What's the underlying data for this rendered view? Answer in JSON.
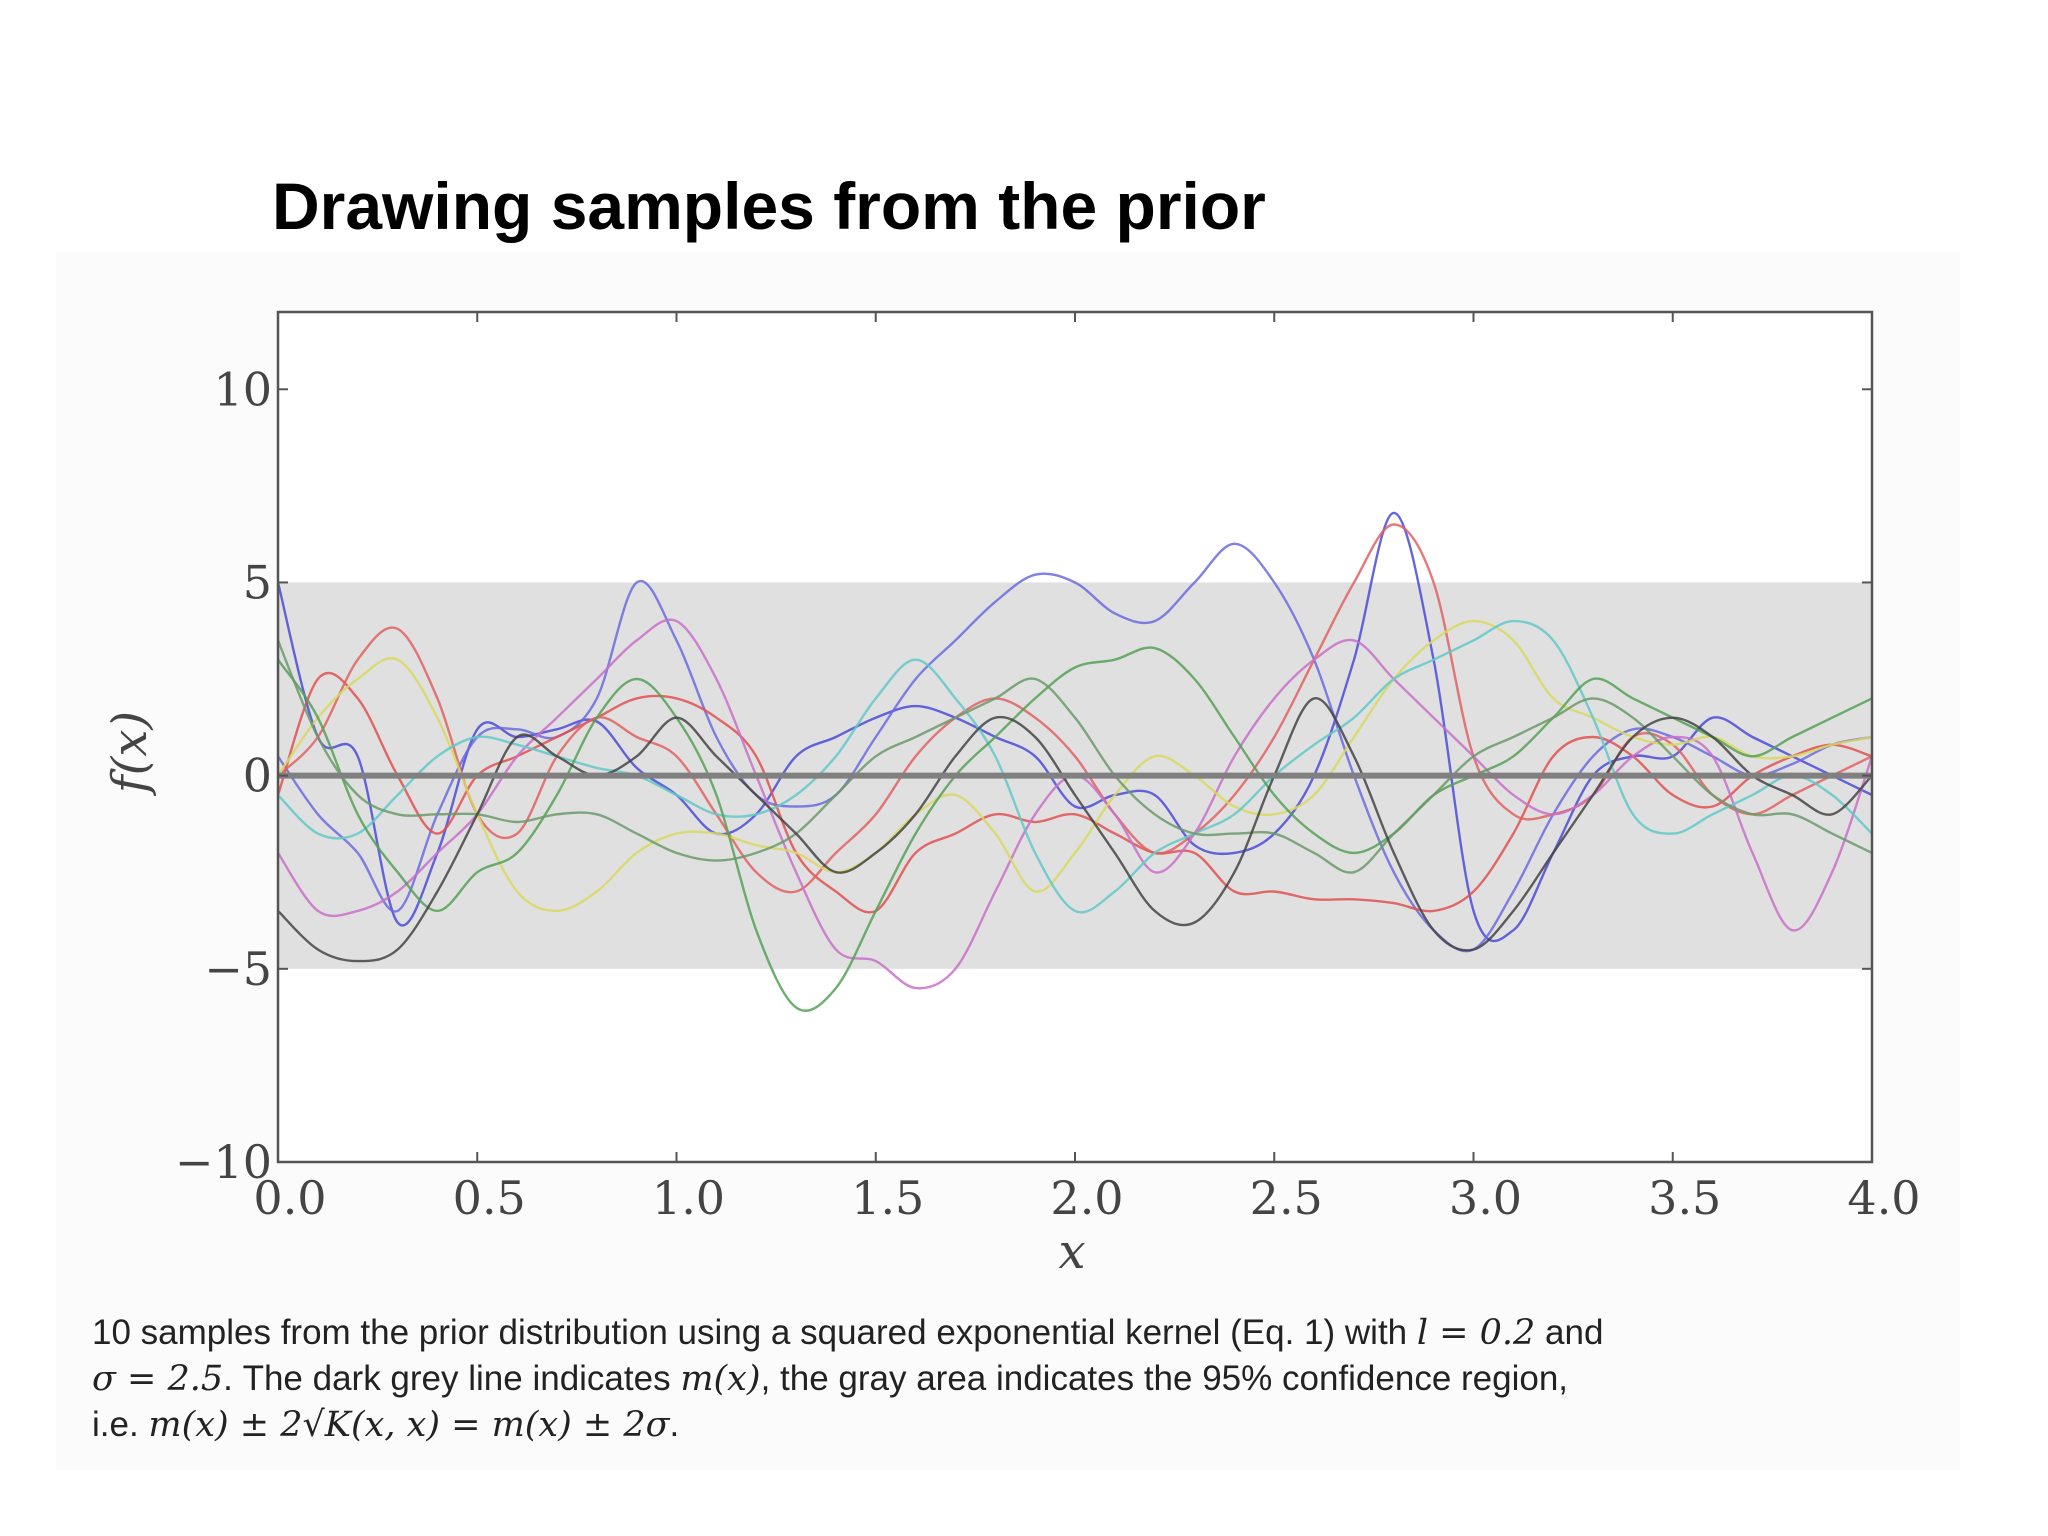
{
  "slide": {
    "title": "Drawing samples from the prior"
  },
  "caption": {
    "line1_text": "10 samples from the prior distribution using a squared exponential kernel (Eq. 1) with ",
    "line1_math": "l = 0.2",
    "line1_tail": " and",
    "line2_math_a": "σ = 2.5",
    "line2_text_a": ". The dark grey line indicates ",
    "line2_math_b": "m(x)",
    "line2_text_b": ", the gray area indicates the 95% confidence region,",
    "line3_text": "i.e. ",
    "line3_math": "m(x) ± 2√K(x, x) = m(x) ± 2σ",
    "line3_tail": "."
  },
  "chart_data": {
    "type": "line",
    "title": "",
    "xlabel": "x",
    "ylabel": "f(x)",
    "xlim": [
      0,
      4
    ],
    "ylim": [
      -10,
      12
    ],
    "xticks": [
      0,
      0.5,
      1,
      1.5,
      2,
      2.5,
      3,
      3.5,
      4
    ],
    "xtick_labels": [
      "0.0",
      "0.5",
      "1.0",
      "1.5",
      "2.0",
      "2.5",
      "3.0",
      "3.5",
      "4.0"
    ],
    "yticks": [
      10,
      5,
      0,
      -5,
      -10
    ],
    "ytick_labels": [
      "10",
      "5",
      "0",
      "−5",
      "−10"
    ],
    "grid": false,
    "mean_line": {
      "value": 0,
      "color": "#808080"
    },
    "confidence_band": {
      "lower": -5,
      "upper": 5,
      "color": "#e0e0e0"
    },
    "x": [
      0,
      0.1,
      0.2,
      0.3,
      0.4,
      0.5,
      0.6,
      0.7,
      0.8,
      0.9,
      1.0,
      1.1,
      1.2,
      1.3,
      1.4,
      1.5,
      1.6,
      1.7,
      1.8,
      1.9,
      2.0,
      2.1,
      2.2,
      2.3,
      2.4,
      2.5,
      2.6,
      2.7,
      2.8,
      2.9,
      3.0,
      3.1,
      3.2,
      3.3,
      3.4,
      3.5,
      3.6,
      3.7,
      3.8,
      3.9,
      4.0
    ],
    "series": [
      {
        "color": "#4a4ad8",
        "values": [
          5.0,
          1.0,
          0.5,
          -3.8,
          -2.0,
          1.2,
          1.0,
          1.2,
          1.4,
          0.2,
          -0.5,
          -1.5,
          -1.0,
          0.5,
          1.0,
          1.5,
          1.8,
          1.5,
          1.0,
          0.5,
          -0.8,
          -0.5,
          -0.5,
          -1.8,
          -2.0,
          -1.5,
          0.0,
          3.0,
          6.8,
          3.0,
          -3.5,
          -4.0,
          -2.0,
          0.0,
          0.5,
          0.5,
          1.5,
          1.0,
          0.5,
          0.0,
          -0.5
        ]
      },
      {
        "color": "#6a6ae0",
        "values": [
          0.5,
          -1.0,
          -2.0,
          -3.5,
          -1.0,
          1.0,
          1.2,
          1.0,
          2.0,
          5.0,
          3.5,
          1.0,
          -0.5,
          -0.8,
          -0.5,
          1.0,
          2.5,
          3.5,
          4.5,
          5.2,
          5.0,
          4.2,
          4.0,
          5.0,
          6.0,
          5.0,
          3.0,
          0.0,
          -2.5,
          -4.0,
          -4.5,
          -3.0,
          -1.0,
          0.5,
          1.2,
          1.0,
          0.5,
          0.0,
          0.3,
          0.8,
          1.0
        ]
      },
      {
        "color": "#e05050",
        "values": [
          -0.5,
          2.5,
          2.0,
          0.0,
          -1.5,
          0.0,
          0.5,
          1.0,
          1.5,
          2.0,
          2.0,
          1.5,
          0.5,
          -2.0,
          -3.0,
          -3.5,
          -2.0,
          -1.5,
          -1.0,
          -1.2,
          -1.0,
          -1.5,
          -2.0,
          -2.0,
          -3.0,
          -3.0,
          -3.2,
          -3.2,
          -3.3,
          -3.5,
          -3.0,
          -1.5,
          0.5,
          1.0,
          0.5,
          -0.5,
          -0.8,
          0.0,
          0.5,
          0.8,
          0.5
        ]
      },
      {
        "color": "#e06060",
        "values": [
          0.0,
          1.0,
          3.0,
          3.8,
          2.0,
          -1.0,
          -1.5,
          0.5,
          1.5,
          1.0,
          0.5,
          -1.0,
          -2.5,
          -3.0,
          -2.0,
          -1.0,
          0.5,
          1.5,
          2.0,
          1.5,
          0.5,
          -1.0,
          -2.0,
          -1.5,
          -0.5,
          1.0,
          3.0,
          5.0,
          6.5,
          5.0,
          0.5,
          -1.0,
          -1.0,
          -0.5,
          1.0,
          0.8,
          -0.5,
          -1.0,
          -0.5,
          0.0,
          0.5
        ]
      },
      {
        "color": "#c870c8",
        "values": [
          -2.0,
          -3.5,
          -3.5,
          -3.0,
          -2.0,
          -1.0,
          0.5,
          1.5,
          2.5,
          3.5,
          4.0,
          2.5,
          0.0,
          -2.5,
          -4.5,
          -4.8,
          -5.5,
          -5.0,
          -3.0,
          -1.0,
          0.0,
          -1.0,
          -2.5,
          -1.5,
          0.5,
          2.0,
          3.0,
          3.5,
          2.5,
          1.5,
          0.5,
          -0.5,
          -1.0,
          -0.5,
          0.5,
          1.0,
          0.5,
          -2.0,
          -4.0,
          -2.5,
          0.5
        ]
      },
      {
        "color": "#d8d860",
        "values": [
          0.0,
          1.5,
          2.5,
          3.0,
          1.5,
          -1.0,
          -3.0,
          -3.5,
          -3.0,
          -2.0,
          -1.5,
          -1.5,
          -1.8,
          -2.0,
          -2.5,
          -2.0,
          -1.0,
          -0.5,
          -1.5,
          -3.0,
          -2.0,
          -0.5,
          0.5,
          0.0,
          -0.8,
          -1.0,
          -0.5,
          1.0,
          2.5,
          3.5,
          4.0,
          3.5,
          2.0,
          1.5,
          1.0,
          0.8,
          1.0,
          0.5,
          0.5,
          0.8,
          1.0
        ]
      },
      {
        "color": "#60c8c8",
        "values": [
          -0.5,
          -1.5,
          -1.5,
          -0.5,
          0.5,
          1.0,
          0.8,
          0.5,
          0.2,
          0.0,
          -0.5,
          -1.0,
          -1.0,
          -0.5,
          0.5,
          2.0,
          3.0,
          2.0,
          0.5,
          -2.0,
          -3.5,
          -3.0,
          -2.0,
          -1.5,
          -1.0,
          0.0,
          0.8,
          1.5,
          2.5,
          3.0,
          3.5,
          4.0,
          3.5,
          1.5,
          -1.0,
          -1.5,
          -1.0,
          -0.5,
          0.0,
          -0.5,
          -1.5
        ]
      },
      {
        "color": "#55a055",
        "values": [
          3.0,
          1.5,
          -1.0,
          -2.5,
          -3.5,
          -2.5,
          -2.0,
          -0.5,
          1.5,
          2.5,
          1.5,
          -0.5,
          -4.0,
          -6.0,
          -5.5,
          -3.5,
          -1.5,
          0.0,
          1.0,
          2.0,
          2.8,
          3.0,
          3.3,
          2.5,
          1.0,
          -0.5,
          -1.5,
          -2.0,
          -1.5,
          -0.5,
          0.0,
          0.5,
          1.5,
          2.5,
          2.0,
          1.5,
          1.0,
          0.5,
          1.0,
          1.5,
          2.0
        ]
      },
      {
        "color": "#6a9a6a",
        "values": [
          3.5,
          1.0,
          -0.5,
          -1.0,
          -1.0,
          -1.0,
          -1.2,
          -1.0,
          -1.0,
          -1.5,
          -2.0,
          -2.2,
          -2.0,
          -1.5,
          -0.5,
          0.5,
          1.0,
          1.5,
          2.0,
          2.5,
          1.5,
          0.0,
          -1.0,
          -1.5,
          -1.5,
          -1.5,
          -2.0,
          -2.5,
          -1.5,
          -0.5,
          0.5,
          1.0,
          1.5,
          2.0,
          1.5,
          0.5,
          -0.5,
          -1.0,
          -1.0,
          -1.5,
          -2.0
        ]
      },
      {
        "color": "#444444",
        "values": [
          -3.5,
          -4.5,
          -4.8,
          -4.5,
          -3.0,
          -1.0,
          1.0,
          0.5,
          0.0,
          0.5,
          1.5,
          0.5,
          -0.5,
          -1.5,
          -2.5,
          -2.0,
          -1.0,
          0.5,
          1.5,
          1.0,
          -0.5,
          -2.0,
          -3.5,
          -3.8,
          -2.5,
          0.0,
          2.0,
          0.5,
          -2.0,
          -4.0,
          -4.5,
          -3.5,
          -2.0,
          -0.5,
          1.0,
          1.5,
          1.0,
          0.0,
          -0.5,
          -1.0,
          0.0
        ]
      }
    ]
  }
}
